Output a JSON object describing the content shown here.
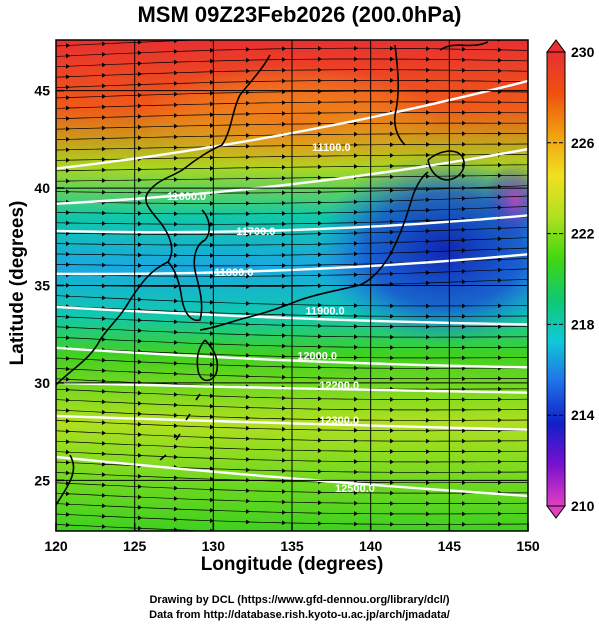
{
  "title": "MSM 09Z23Feb2026 (200.0hPa)",
  "xlabel": "Longitude (degrees)",
  "ylabel": "Latitude  (degrees)",
  "credit_line1": "Drawing by DCL (https://www.gfd-dennou.org/library/dcl/)",
  "credit_line2": "Data from http://database.rish.kyoto-u.ac.jp/arch/jmadata/",
  "colorbar": {
    "min": 210,
    "max": 230,
    "tick_labels": [
      "210",
      "214",
      "218",
      "222",
      "226",
      "230"
    ],
    "tick_values": [
      210,
      214,
      218,
      222,
      226,
      230
    ],
    "colors": [
      "#e040c0",
      "#7a10d0",
      "#1020c8",
      "#2070e8",
      "#10c8d8",
      "#10c870",
      "#40d810",
      "#b0e020",
      "#f0e020",
      "#f0a010",
      "#f05010",
      "#e83030"
    ]
  },
  "chart_data": {
    "type": "heatmap",
    "xlim": [
      120,
      150
    ],
    "ylim": [
      22.4,
      47.6
    ],
    "x_ticks": [
      "120",
      "125",
      "130",
      "135",
      "140",
      "145",
      "150"
    ],
    "x_tick_values": [
      120,
      125,
      130,
      135,
      140,
      145,
      150
    ],
    "y_ticks": [
      "25",
      "30",
      "35",
      "40",
      "45"
    ],
    "y_tick_values": [
      25,
      30,
      35,
      40,
      45
    ],
    "contour_labels": [
      {
        "text": "11100.0",
        "lon": 137.5,
        "lat": 41.9
      },
      {
        "text": "11600.0",
        "lon": 128.3,
        "lat": 39.4
      },
      {
        "text": "11700.0",
        "lon": 132.7,
        "lat": 37.6
      },
      {
        "text": "11800.0",
        "lon": 131.3,
        "lat": 35.5
      },
      {
        "text": "11900.0",
        "lon": 137.1,
        "lat": 33.5
      },
      {
        "text": "12000.0",
        "lon": 136.6,
        "lat": 31.2
      },
      {
        "text": "12200.0",
        "lon": 138.0,
        "lat": 29.7
      },
      {
        "text": "12300.0",
        "lon": 138.0,
        "lat": 27.9
      },
      {
        "text": "12500.0",
        "lon": 139.0,
        "lat": 24.4
      }
    ]
  }
}
